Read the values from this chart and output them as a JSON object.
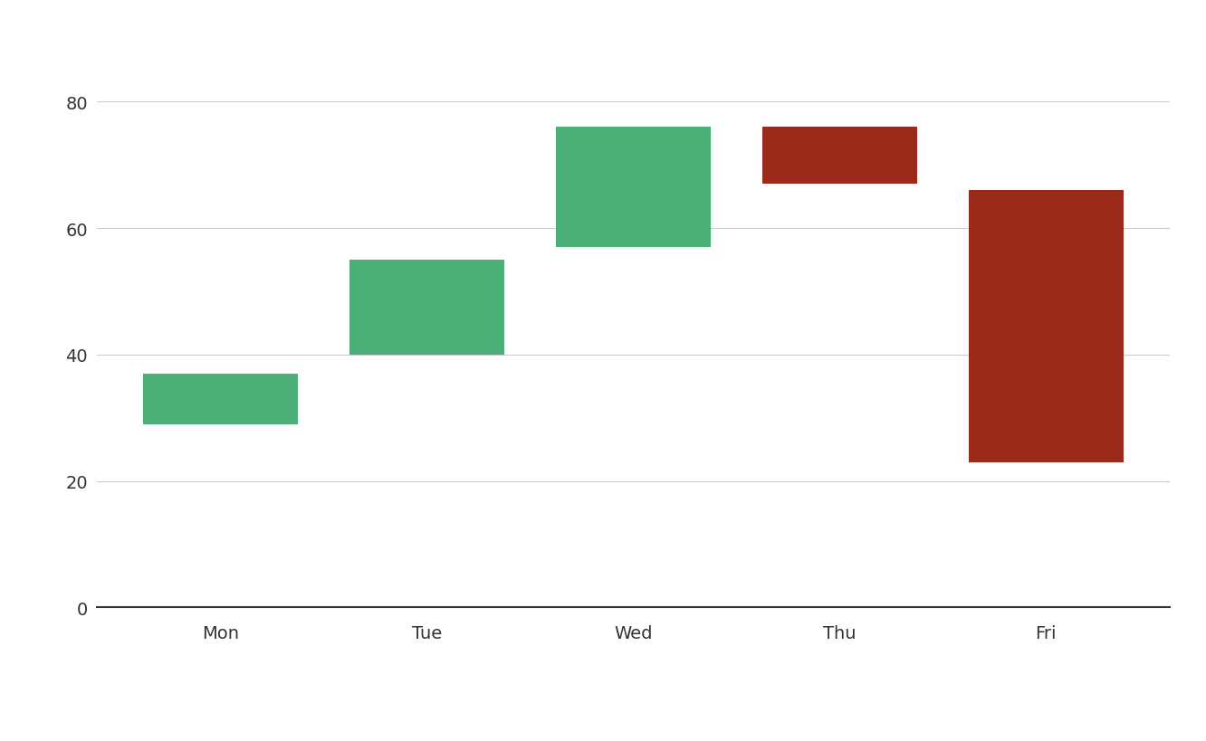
{
  "categories": [
    "Mon",
    "Tue",
    "Wed",
    "Thu",
    "Fri"
  ],
  "bar_bottoms": [
    29,
    40,
    57,
    67,
    23
  ],
  "bar_tops": [
    37,
    55,
    76,
    76,
    66
  ],
  "bar_colors": [
    "#4caf78",
    "#4caf78",
    "#4caf78",
    "#9b2a1a",
    "#9b2a1a"
  ],
  "positive_color": "#4caf78",
  "negative_color": "#9b2a1a",
  "ylim": [
    0,
    88
  ],
  "yticks": [
    0,
    20,
    40,
    60,
    80
  ],
  "background_color": "#ffffff",
  "grid_color": "#cccccc",
  "xlabel_fontsize": 14,
  "ylabel_fontsize": 14,
  "bar_width": 0.75
}
